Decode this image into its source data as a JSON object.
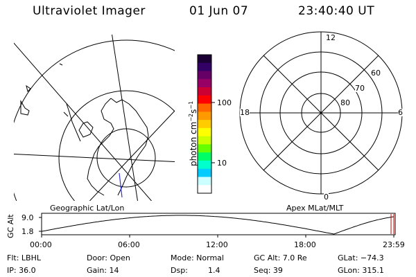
{
  "header": {
    "instrument": "Ultraviolet Imager",
    "date": "01 Jun 07",
    "time": "23:40:40 UT"
  },
  "colorbar": {
    "unit_label": "photon cm",
    "unit_sup1": "−2",
    "unit_mid": "s",
    "unit_sup2": "−1",
    "tick_100": "100",
    "tick_10": "10",
    "scale": "log",
    "colors_top_to_bottom": [
      "#1a0033",
      "#330066",
      "#660066",
      "#990066",
      "#cc0033",
      "#ff0000",
      "#ff6600",
      "#ff9900",
      "#ffcc00",
      "#ffff00",
      "#ccff00",
      "#66ff00",
      "#00ff66",
      "#00ffcc",
      "#00ccff",
      "#ccffff",
      "#ffffff"
    ]
  },
  "geo_panel": {
    "label": "Geographic Lat/Lon"
  },
  "apex_panel": {
    "label": "Apex  MLat/MLT",
    "mlt_top": "12",
    "mlt_bottom": "0",
    "mlt_left": "18",
    "mlt_right": "6",
    "lat_60": "60",
    "lat_70": "70",
    "lat_80": "80"
  },
  "altitude_plot": {
    "ylabel": "GC Alt",
    "ytick_top": "9.0",
    "ytick_bottom": "1.8",
    "xticks": [
      "00:00",
      "06:00",
      "12:00",
      "18:00",
      "23:59"
    ]
  },
  "status": {
    "flt": "Flt: LBHL",
    "ip": "IP: 36.0",
    "door": "Door: Open",
    "gain": "Gain: 14",
    "mode": "Mode: Normal",
    "dsp_label": "Dsp:",
    "dsp_value": "1.4",
    "gc_alt": "GC Alt: 7.0 Re",
    "seq": "Seq: 39",
    "glat": "GLat: −74.3",
    "glon": "GLon: 315.1"
  }
}
